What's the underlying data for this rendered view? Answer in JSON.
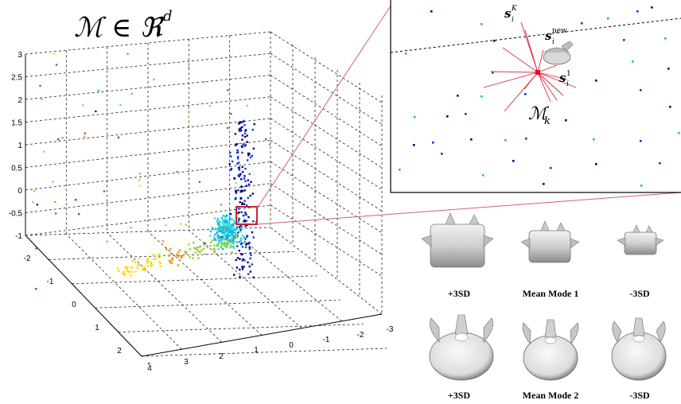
{
  "figure": {
    "main_title": "ℳ ∈ ℜ",
    "main_title_sup": "d",
    "inset": {
      "label_sk_base": "s",
      "label_sk_sub": "i",
      "label_sk_sup": "K",
      "label_snew_base": "s",
      "label_snew_sub": "i",
      "label_snew_sup": "new",
      "label_s1_base": "s",
      "label_s1_sub": "i",
      "label_s1_sup": "1",
      "label_mk_base": "ℳ",
      "label_mk_sub": "k"
    },
    "shape_captions_row1": [
      "+3SD",
      "Mean Mode 1",
      "-3SD"
    ],
    "shape_captions_row2": [
      "+3SD",
      "Mean Mode 2",
      "-3SD"
    ],
    "colors": {
      "zoom_box": "#cc2233",
      "neighbor_lines": "#d62a3c",
      "point_palette": [
        "#00008b",
        "#0a3fd0",
        "#1ab3e6",
        "#40e0d0",
        "#9acd32",
        "#ffd700",
        "#ff8c00",
        "#cc3300"
      ]
    }
  },
  "chart_data": {
    "type": "scatter",
    "projection": "3d",
    "title": "ℳ ∈ ℜ^d",
    "z_ticks": [
      "3",
      "2.5",
      "2",
      "1.5",
      "1",
      "0.5",
      "0",
      "-0.5",
      "-1"
    ],
    "y_ticks": [
      "-2",
      "-1",
      "0",
      "1",
      "2"
    ],
    "x_ticks": [
      "4",
      "3",
      "2",
      "1",
      "0",
      "-1",
      "-2",
      "-3"
    ],
    "zlim": [
      -1,
      3
    ],
    "ylim": [
      -2,
      2
    ],
    "xlim": [
      -3,
      4
    ],
    "grid": true,
    "colormap": "jet",
    "note_fields": "point cloud of shape embeddings; each point's colour encodes a scalar"
  }
}
